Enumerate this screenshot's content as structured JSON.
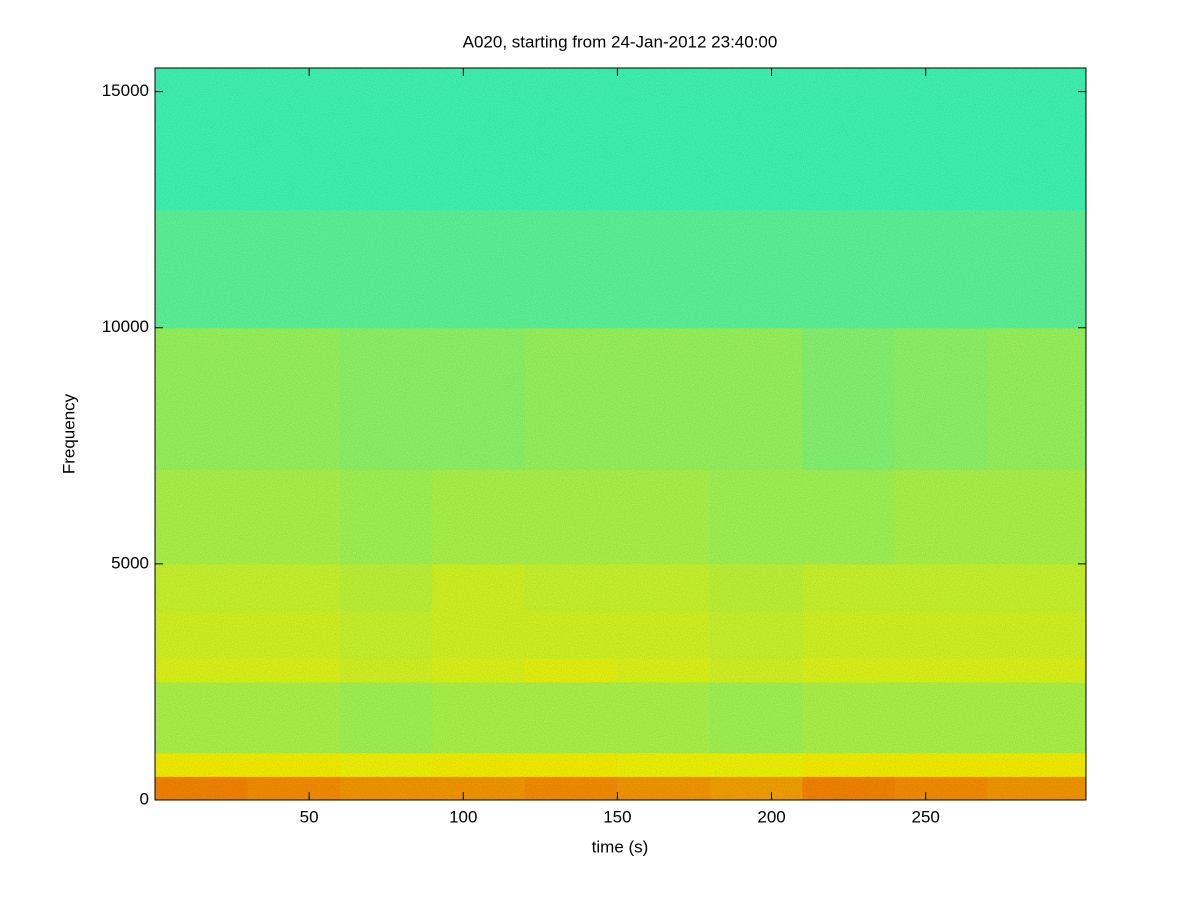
{
  "chart_data": {
    "type": "spectrogram",
    "title": "A020, starting from 24-Jan-2012 23:40:00",
    "x_label": "time (s)",
    "y_label": "Frequency",
    "colormap": "jet",
    "clim": [
      0,
      1
    ],
    "x_edges": [
      0,
      30,
      60,
      90,
      120,
      150,
      180,
      210,
      240,
      270,
      302
    ],
    "y_edges": [
      0,
      500,
      1000,
      2500,
      3000,
      4000,
      5000,
      7000,
      10000,
      12500,
      15500
    ],
    "z": [
      [
        0.74,
        0.73,
        0.72,
        0.72,
        0.73,
        0.72,
        0.71,
        0.74,
        0.73,
        0.72
      ],
      [
        0.63,
        0.63,
        0.62,
        0.63,
        0.63,
        0.62,
        0.62,
        0.63,
        0.63,
        0.63
      ],
      [
        0.55,
        0.55,
        0.54,
        0.55,
        0.55,
        0.55,
        0.54,
        0.55,
        0.55,
        0.55
      ],
      [
        0.6,
        0.6,
        0.59,
        0.6,
        0.61,
        0.6,
        0.59,
        0.6,
        0.6,
        0.6
      ],
      [
        0.59,
        0.59,
        0.58,
        0.59,
        0.59,
        0.59,
        0.58,
        0.59,
        0.59,
        0.59
      ],
      [
        0.58,
        0.58,
        0.57,
        0.59,
        0.58,
        0.58,
        0.57,
        0.58,
        0.58,
        0.58
      ],
      [
        0.55,
        0.55,
        0.54,
        0.55,
        0.55,
        0.55,
        0.54,
        0.54,
        0.55,
        0.55
      ],
      [
        0.53,
        0.53,
        0.52,
        0.52,
        0.53,
        0.53,
        0.53,
        0.51,
        0.52,
        0.53
      ],
      [
        0.47,
        0.47,
        0.47,
        0.47,
        0.47,
        0.47,
        0.47,
        0.47,
        0.47,
        0.47
      ],
      [
        0.44,
        0.44,
        0.44,
        0.44,
        0.44,
        0.44,
        0.44,
        0.44,
        0.44,
        0.44
      ]
    ],
    "xlim": [
      0,
      302
    ],
    "ylim": [
      0,
      15500
    ],
    "xticks": [
      50,
      100,
      150,
      200,
      250
    ],
    "yticks": [
      0,
      5000,
      10000,
      15000
    ]
  }
}
